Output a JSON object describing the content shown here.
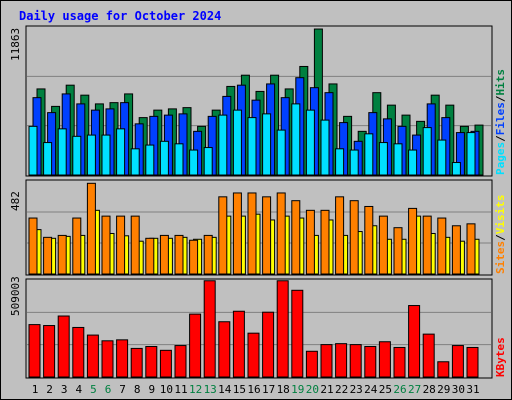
{
  "title": "Daily usage for October 2024",
  "colors": {
    "title": "#0000ff",
    "background": "#c0c0c0",
    "hits": "#008040",
    "files": "#0040ff",
    "pages": "#00e0ff",
    "visits": "#ffff00",
    "sites": "#ff8000",
    "kbytes": "#ff0000",
    "weekend_label": "#008040",
    "weekday_label": "#000000",
    "separator": "#ffffff",
    "gridline": "#808080"
  },
  "legend": {
    "pages": "Pages",
    "files": "Files",
    "hits": "Hits",
    "sites": "Sites",
    "visits": "Visits",
    "kbytes": "KBytes",
    "slash": "/"
  },
  "chart_data": {
    "type": "bar",
    "title": "Daily usage for October 2024",
    "x": [
      1,
      2,
      3,
      4,
      5,
      6,
      7,
      8,
      9,
      10,
      11,
      12,
      13,
      14,
      15,
      16,
      17,
      18,
      19,
      20,
      21,
      22,
      23,
      24,
      25,
      26,
      27,
      28,
      29,
      30,
      31
    ],
    "weekend_days": [
      5,
      6,
      12,
      13,
      19,
      20,
      26,
      27
    ],
    "panels": [
      {
        "name": "hits-files-pages",
        "max_label": "11863",
        "ymax": 11863,
        "series": [
          {
            "name": "Hits",
            "values": [
              6900,
              5500,
              7200,
              6400,
              5700,
              5800,
              6500,
              4600,
              5200,
              5300,
              5400,
              3900,
              5200,
              7100,
              8000,
              6700,
              8000,
              6900,
              8700,
              11700,
              7300,
              4700,
              3500,
              6600,
              5600,
              4800,
              4300,
              6400,
              5600,
              3900,
              4000
            ]
          },
          {
            "name": "Files",
            "values": [
              6200,
              5000,
              6500,
              5700,
              5200,
              5300,
              5800,
              4100,
              4700,
              4800,
              4900,
              3500,
              4700,
              6300,
              7200,
              6000,
              7300,
              6200,
              7800,
              7000,
              6600,
              4200,
              2700,
              5000,
              4500,
              3900,
              3200,
              5700,
              4600,
              3400,
              3500
            ]
          },
          {
            "name": "Pages",
            "values": [
              3900,
              2600,
              3700,
              3100,
              3200,
              3200,
              3700,
              2100,
              2400,
              2700,
              2500,
              2000,
              2200,
              4800,
              5200,
              4600,
              4900,
              3600,
              5700,
              5200,
              4400,
              2100,
              2000,
              3300,
              2600,
              2500,
              2000,
              3800,
              2800,
              1000,
              3400
            ]
          }
        ]
      },
      {
        "name": "visits-sites",
        "max_label": "482",
        "ymax": 482,
        "series": [
          {
            "name": "Visits",
            "values": [
              230,
              185,
              195,
              200,
              330,
              210,
              198,
              170,
              185,
              185,
              190,
              180,
              190,
              300,
              300,
              310,
              280,
              300,
              290,
              200,
              280,
              200,
              220,
              250,
              180,
              180,
              300,
              210,
              190,
              170,
              180
            ]
          },
          {
            "name": "Sites",
            "values": [
              290,
              190,
              200,
              290,
              470,
              300,
              300,
              300,
              185,
              200,
              200,
              175,
              200,
              400,
              420,
              420,
              400,
              420,
              380,
              330,
              330,
              400,
              380,
              350,
              300,
              240,
              340,
              300,
              290,
              250,
              260
            ]
          }
        ]
      },
      {
        "name": "kbytes",
        "max_label": "509003",
        "ymax": 509003,
        "series": [
          {
            "name": "KBytes",
            "values": [
              275000,
              270000,
              320000,
              260000,
              220000,
              190000,
              195000,
              150000,
              160000,
              140000,
              165000,
              330000,
              505000,
              290000,
              345000,
              230000,
              340000,
              505000,
              455000,
              135000,
              170000,
              175000,
              170000,
              160000,
              185000,
              155000,
              375000,
              225000,
              80000,
              165000,
              155000
            ]
          }
        ]
      }
    ]
  }
}
